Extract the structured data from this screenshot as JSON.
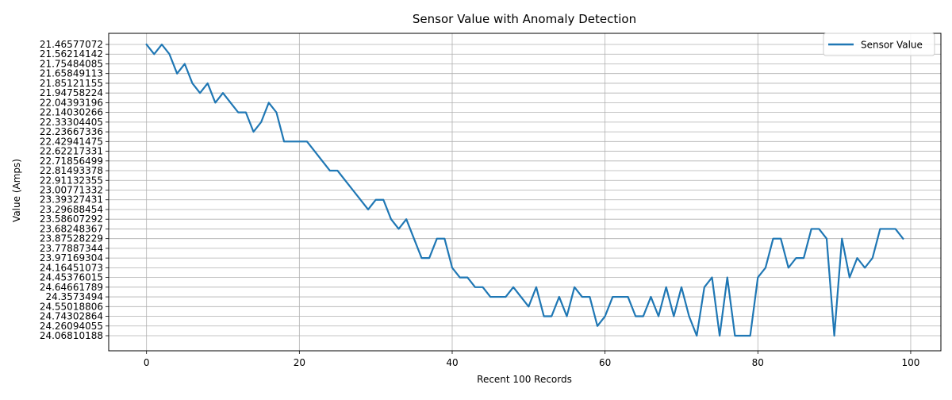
{
  "chart_data": {
    "type": "line",
    "title": "Sensor Value with Anomaly Detection",
    "xlabel": "Recent 100 Records",
    "ylabel": "Value (Amps)",
    "y_axis_kind": "categorical",
    "y_categories": [
      "21.46577072",
      "21.56214142",
      "21.75484085",
      "21.65849113",
      "21.85121155",
      "21.94758224",
      "22.04393196",
      "22.14030266",
      "22.33304405",
      "22.23667336",
      "22.42941475",
      "22.62217331",
      "22.71856499",
      "22.81493378",
      "22.91132355",
      "23.00771332",
      "23.39327431",
      "23.29688454",
      "23.58607292",
      "23.68248367",
      "23.87528229",
      "23.77887344",
      "23.97169304",
      "24.16451073",
      "24.45376015",
      "24.64661789",
      "24.3573494",
      "24.55018806",
      "24.74302864",
      "24.26094055",
      "24.06810188"
    ],
    "xlim": [
      -4.95,
      103.95
    ],
    "x_ticks": [
      0,
      20,
      40,
      60,
      80,
      100
    ],
    "grid": true,
    "legend_position": "upper right",
    "series": [
      {
        "name": "Sensor Value",
        "color": "#1f77b4",
        "x": [
          0,
          1,
          2,
          3,
          4,
          5,
          6,
          7,
          8,
          9,
          10,
          11,
          12,
          13,
          14,
          15,
          16,
          17,
          18,
          19,
          20,
          21,
          22,
          23,
          24,
          25,
          26,
          27,
          28,
          29,
          30,
          31,
          32,
          33,
          34,
          35,
          36,
          37,
          38,
          39,
          40,
          41,
          42,
          43,
          44,
          45,
          46,
          47,
          48,
          49,
          50,
          51,
          52,
          53,
          54,
          55,
          56,
          57,
          58,
          59,
          60,
          61,
          62,
          63,
          64,
          65,
          66,
          67,
          68,
          69,
          70,
          71,
          72,
          73,
          74,
          75,
          76,
          77,
          78,
          79,
          80,
          81,
          82,
          83,
          84,
          85,
          86,
          87,
          88,
          89,
          90,
          91,
          92,
          93,
          94,
          95,
          96,
          97,
          98,
          99
        ],
        "y": [
          "21.46577072",
          "21.56214142",
          "21.46577072",
          "21.56214142",
          "21.65849113",
          "21.75484085",
          "21.85121155",
          "21.94758224",
          "21.85121155",
          "22.04393196",
          "21.94758224",
          "22.04393196",
          "22.14030266",
          "22.14030266",
          "22.23667336",
          "22.33304405",
          "22.04393196",
          "22.14030266",
          "22.42941475",
          "22.42941475",
          "22.42941475",
          "22.42941475",
          "22.62217331",
          "22.71856499",
          "22.81493378",
          "22.81493378",
          "22.91132355",
          "23.00771332",
          "23.39327431",
          "23.29688454",
          "23.39327431",
          "23.39327431",
          "23.58607292",
          "23.68248367",
          "23.58607292",
          "23.87528229",
          "23.97169304",
          "23.97169304",
          "23.87528229",
          "23.87528229",
          "24.16451073",
          "24.45376015",
          "24.45376015",
          "24.64661789",
          "24.64661789",
          "24.3573494",
          "24.3573494",
          "24.3573494",
          "24.64661789",
          "24.3573494",
          "24.55018806",
          "24.64661789",
          "24.74302864",
          "24.74302864",
          "24.3573494",
          "24.74302864",
          "24.64661789",
          "24.3573494",
          "24.3573494",
          "24.26094055",
          "24.74302864",
          "24.3573494",
          "24.3573494",
          "24.3573494",
          "24.74302864",
          "24.74302864",
          "24.3573494",
          "24.74302864",
          "24.64661789",
          "24.74302864",
          "24.64661789",
          "24.74302864",
          "24.06810188",
          "24.64661789",
          "24.45376015",
          "24.06810188",
          "24.45376015",
          "24.06810188",
          "24.06810188",
          "24.06810188",
          "24.45376015",
          "24.16451073",
          "23.87528229",
          "23.87528229",
          "24.16451073",
          "23.97169304",
          "23.97169304",
          "23.68248367",
          "23.68248367",
          "23.87528229",
          "24.06810188",
          "23.87528229",
          "24.45376015",
          "23.97169304",
          "24.16451073",
          "23.97169304",
          "23.68248367",
          "23.68248367",
          "23.68248367",
          "23.87528229"
        ]
      }
    ]
  }
}
